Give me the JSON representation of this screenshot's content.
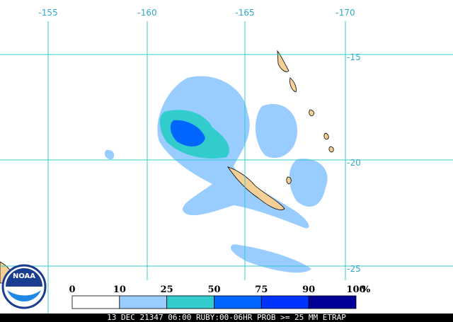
{
  "map": {
    "lon_labels": [
      "-155",
      "-160",
      "-165",
      "-170"
    ],
    "lat_labels": [
      "-15",
      "-20",
      "-25"
    ],
    "grid_color": "#33cccc"
  },
  "legend": {
    "labels": [
      "0",
      "10",
      "25",
      "50",
      "75",
      "90",
      "100"
    ],
    "unit": "%",
    "colors": [
      "#ffffff",
      "#99ccff",
      "#33cccc",
      "#0066ff",
      "#0033ff",
      "#000099"
    ]
  },
  "footer": "13 DEC 21347 06:00 RUBY:00-06HR PROB >= 25 MM ETRAP",
  "logo": "NOAA"
}
